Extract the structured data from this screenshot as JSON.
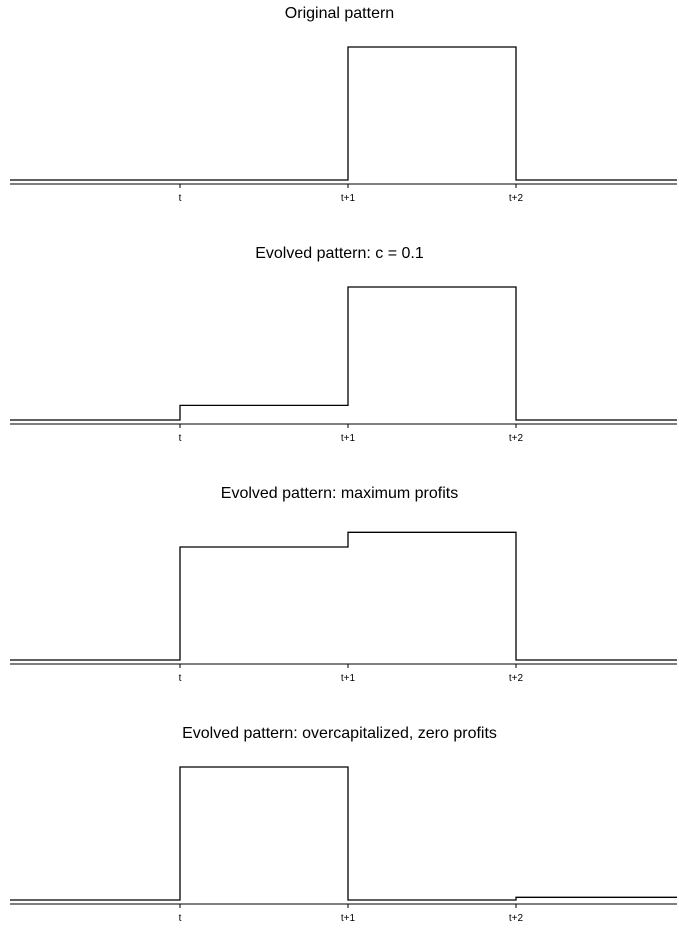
{
  "chart_data": [
    {
      "type": "line",
      "title": "Original pattern",
      "xlabel": "",
      "ylabel": "",
      "x_ticks": [
        "t",
        "t+1",
        "t+2"
      ],
      "xlim": [
        -1,
        2
      ],
      "ylim": [
        0,
        1
      ],
      "grid": false,
      "colors": {
        "line": "#000000",
        "axis": "#000000"
      },
      "segments": [
        {
          "x0": -1,
          "x1": 0,
          "y": 0.0
        },
        {
          "x0": 0,
          "x1": 1,
          "y": 0.0
        },
        {
          "x0": 1,
          "x1": 2,
          "y": 1.0
        },
        {
          "x0": 2,
          "x1": 3,
          "y": 0.0
        }
      ]
    },
    {
      "type": "line",
      "title": "Evolved pattern: c = 0.1",
      "xlabel": "",
      "ylabel": "",
      "x_ticks": [
        "t",
        "t+1",
        "t+2"
      ],
      "xlim": [
        -1,
        2
      ],
      "ylim": [
        0,
        1
      ],
      "grid": false,
      "colors": {
        "line": "#000000",
        "axis": "#000000"
      },
      "segments": [
        {
          "x0": -1,
          "x1": 0,
          "y": 0.0
        },
        {
          "x0": 0,
          "x1": 1,
          "y": 0.11
        },
        {
          "x0": 1,
          "x1": 2,
          "y": 1.0
        },
        {
          "x0": 2,
          "x1": 3,
          "y": 0.0
        }
      ]
    },
    {
      "type": "line",
      "title": "Evolved pattern: maximum profits",
      "xlabel": "",
      "ylabel": "",
      "x_ticks": [
        "t",
        "t+1",
        "t+2"
      ],
      "xlim": [
        -1,
        2
      ],
      "ylim": [
        0,
        1
      ],
      "grid": false,
      "colors": {
        "line": "#000000",
        "axis": "#000000"
      },
      "segments": [
        {
          "x0": -1,
          "x1": 0,
          "y": 0.0
        },
        {
          "x0": 0,
          "x1": 1,
          "y": 0.85
        },
        {
          "x0": 1,
          "x1": 2,
          "y": 0.96
        },
        {
          "x0": 2,
          "x1": 3,
          "y": 0.0
        }
      ]
    },
    {
      "type": "line",
      "title": "Evolved pattern: overcapitalized, zero profits",
      "xlabel": "",
      "ylabel": "",
      "x_ticks": [
        "t",
        "t+1",
        "t+2"
      ],
      "xlim": [
        -1,
        2
      ],
      "ylim": [
        0,
        1
      ],
      "grid": false,
      "colors": {
        "line": "#000000",
        "axis": "#000000"
      },
      "segments": [
        {
          "x0": -1,
          "x1": 0,
          "y": 0.0
        },
        {
          "x0": 0,
          "x1": 1,
          "y": 1.0
        },
        {
          "x0": 1,
          "x1": 2,
          "y": 0.0
        },
        {
          "x0": 2,
          "x1": 3,
          "y": 0.02
        }
      ]
    }
  ]
}
